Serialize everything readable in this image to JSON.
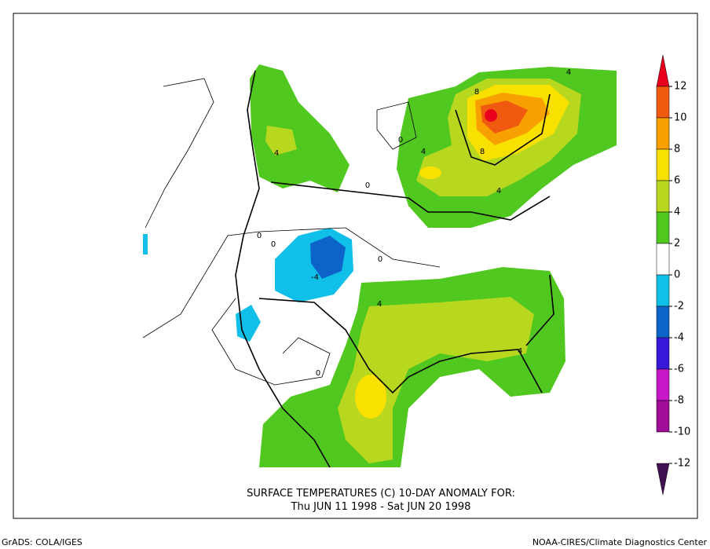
{
  "title": {
    "line1": "SURFACE TEMPERATURES (C)   10-DAY ANOMALY FOR:",
    "line2": "Thu JUN 11 1998 - Sat JUN 20 1998"
  },
  "footer": {
    "left": "GrADS: COLA/IGES",
    "right": "NOAA-CIRES/Climate Diagnostics Center"
  },
  "colorbar": {
    "levels": [
      12,
      10,
      8,
      6,
      4,
      2,
      0,
      -2,
      -4,
      -6,
      -8,
      -10,
      -12
    ],
    "colors": [
      "#e8001c",
      "#f05a10",
      "#f8a000",
      "#f8e000",
      "#b8d820",
      "#50c820",
      "#ffffff",
      "#10c0e8",
      "#0c64c8",
      "#3818d8",
      "#c818c8",
      "#a00c98",
      "#401050"
    ]
  },
  "contour_labels": [
    4,
    8,
    4,
    4,
    8,
    4,
    0,
    0,
    0,
    0,
    0,
    -4,
    4,
    4,
    0
  ]
}
